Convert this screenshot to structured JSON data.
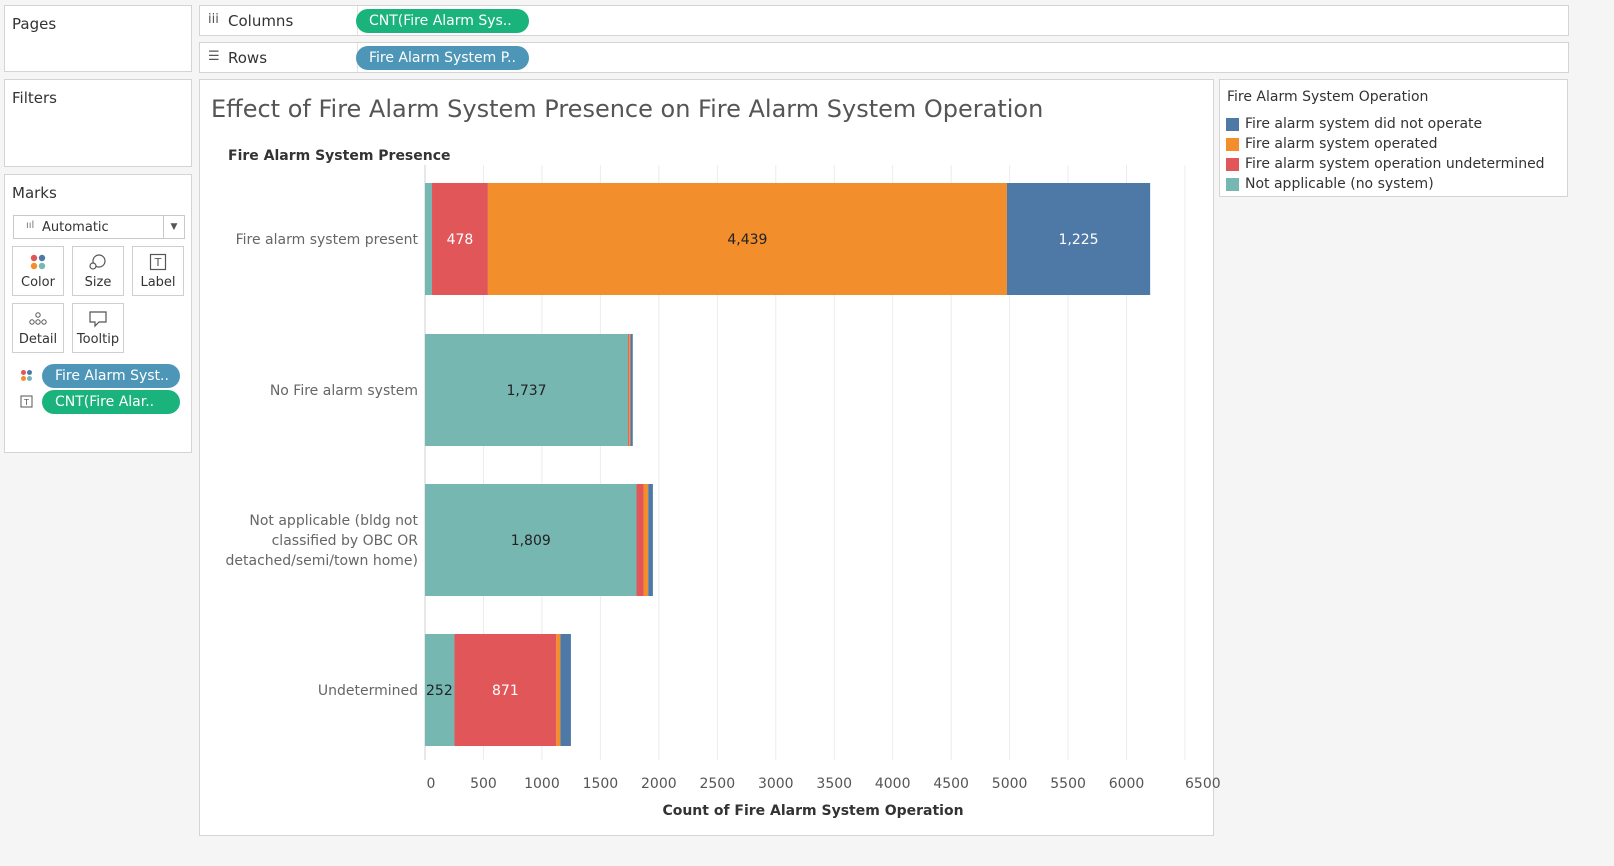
{
  "pages": {
    "title": "Pages"
  },
  "filters": {
    "title": "Filters"
  },
  "columns_shelf": {
    "label": "Columns",
    "pill": "CNT(Fire Alarm Sys.."
  },
  "rows_shelf": {
    "label": "Rows",
    "pill": "Fire Alarm System P.."
  },
  "marks": {
    "title": "Marks",
    "mark_type": "Automatic",
    "buttons": {
      "color": "Color",
      "size": "Size",
      "label": "Label",
      "detail": "Detail",
      "tooltip": "Tooltip"
    },
    "encodings": [
      {
        "type": "color",
        "pill": "Fire Alarm Syst.."
      },
      {
        "type": "label",
        "pill": "CNT(Fire Alar.."
      }
    ]
  },
  "legend": {
    "title": "Fire Alarm System Operation",
    "items": [
      {
        "label": "Fire alarm system did not operate",
        "color": "#4e79a7"
      },
      {
        "label": "Fire alarm system operated",
        "color": "#f28e2b"
      },
      {
        "label": "Fire alarm system operation undetermined",
        "color": "#e15759"
      },
      {
        "label": "Not applicable (no system)",
        "color": "#76b7b2"
      }
    ]
  },
  "chart_data": {
    "type": "bar",
    "orientation": "horizontal",
    "stacked": true,
    "title": "Effect of Fire Alarm System Presence on Fire Alarm System Operation",
    "row_header": "Fire Alarm System Presence",
    "xlabel": "Count of Fire Alarm System Operation",
    "xlim": [
      0,
      6500
    ],
    "xticks": [
      0,
      500,
      1000,
      1500,
      2000,
      2500,
      3000,
      3500,
      4000,
      4500,
      5000,
      5500,
      6000,
      6500
    ],
    "grid": true,
    "categories": [
      "Fire alarm system present",
      "No Fire alarm system",
      "Not applicable (bldg not classified by OBC OR detached/semi/town home)",
      "Undetermined"
    ],
    "series": [
      {
        "name": "Not applicable (no system)",
        "color": "#76b7b2",
        "values": [
          60,
          1737,
          1809,
          252
        ]
      },
      {
        "name": "Fire alarm system operation undetermined",
        "color": "#e15759",
        "values": [
          478,
          10,
          60,
          871
        ]
      },
      {
        "name": "Fire alarm system operated",
        "color": "#f28e2b",
        "values": [
          4439,
          10,
          40,
          35
        ]
      },
      {
        "name": "Fire alarm system did not operate",
        "color": "#4e79a7",
        "values": [
          1225,
          20,
          40,
          90
        ]
      }
    ],
    "data_labels": [
      [
        "",
        "478",
        "4,439",
        "1,225"
      ],
      [
        "1,737",
        "",
        "",
        ""
      ],
      [
        "1,809",
        "",
        "",
        ""
      ],
      [
        "252",
        "871",
        "",
        ""
      ]
    ]
  }
}
